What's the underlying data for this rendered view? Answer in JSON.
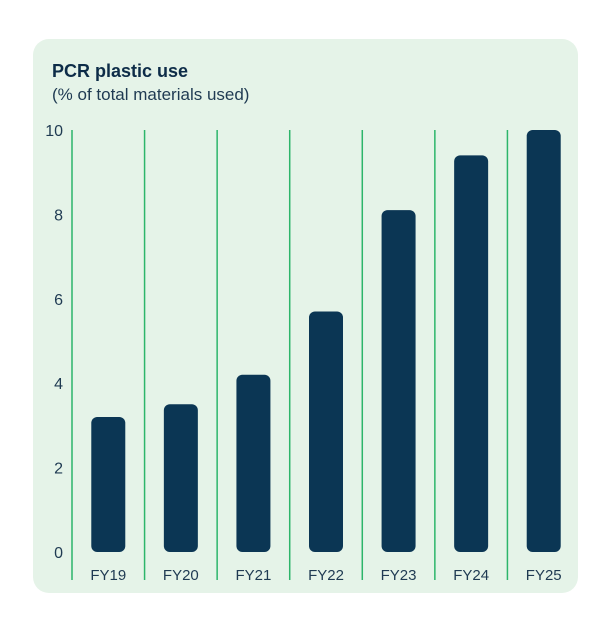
{
  "colors": {
    "background": "#e5f3e8",
    "bar": "#0b3654",
    "divider": "#2db56a",
    "text": "#0d2c48"
  },
  "chart_data": {
    "type": "bar",
    "title": "PCR plastic use",
    "subtitle": "(% of total materials used)",
    "categories": [
      "FY19",
      "FY20",
      "FY21",
      "FY22",
      "FY23",
      "FY24",
      "FY25"
    ],
    "values": [
      3.2,
      3.5,
      4.2,
      5.7,
      8.1,
      9.4,
      10.0
    ],
    "ylim": [
      0,
      10
    ],
    "yticks": [
      "0",
      "2",
      "4",
      "6",
      "8",
      "10"
    ],
    "grid": false,
    "legend": "none"
  }
}
